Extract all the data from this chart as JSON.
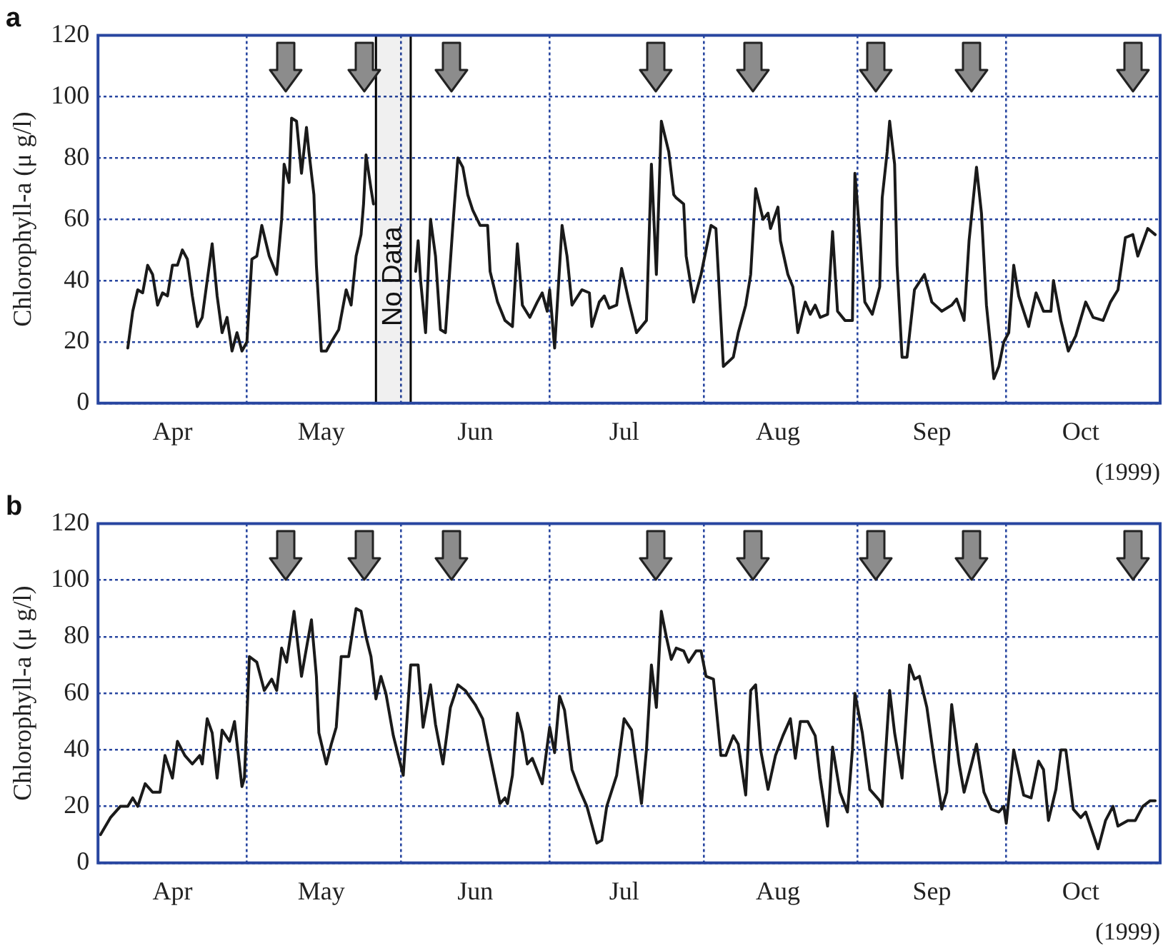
{
  "chart_data": [
    {
      "type": "line",
      "title": "a",
      "ylabel": "Chlorophyll-a (μ g/l)",
      "xlim": [
        "1999-04-01",
        "1999-11-01"
      ],
      "xticks": [
        {
          "value": "1999-04-01",
          "label": null
        },
        {
          "value": "1999-04-16",
          "label": "Apr"
        },
        {
          "value": "1999-05-01",
          "label": null
        },
        {
          "value": "1999-05-16",
          "label": "May"
        },
        {
          "value": "1999-06-01",
          "label": null
        },
        {
          "value": "1999-06-16",
          "label": "Jun"
        },
        {
          "value": "1999-07-01",
          "label": null
        },
        {
          "value": "1999-07-16",
          "label": "Jul"
        },
        {
          "value": "1999-08-01",
          "label": null
        },
        {
          "value": "1999-08-16",
          "label": "Aug"
        },
        {
          "value": "1999-09-01",
          "label": null
        },
        {
          "value": "1999-09-16",
          "label": "Sep"
        },
        {
          "value": "1999-10-01",
          "label": null
        },
        {
          "value": "1999-10-16",
          "label": "Oct"
        }
      ],
      "ylim": [
        0,
        120
      ],
      "yticks": [
        0,
        20,
        40,
        60,
        80,
        100,
        120
      ],
      "grid": true,
      "marker": "none",
      "line_style": "solid",
      "bands": [
        {
          "axis": "x",
          "from": "1999-05-27",
          "to": "1999-06-03",
          "label": "No Data"
        }
      ],
      "annotations": [
        "(1999)"
      ],
      "x": [
        "1999-04-07",
        "1999-04-08",
        "1999-04-09",
        "1999-04-10",
        "1999-04-11",
        "1999-04-12",
        "1999-04-13",
        "1999-04-14",
        "1999-04-15",
        "1999-04-16",
        "1999-04-17",
        "1999-04-18",
        "1999-04-19",
        "1999-04-20",
        "1999-04-21",
        "1999-04-22",
        "1999-04-24",
        "1999-04-25",
        "1999-04-26",
        "1999-04-27",
        "1999-04-28",
        "1999-04-29",
        "1999-04-30",
        "1999-05-01",
        "1999-05-02",
        "1999-05-03",
        "1999-05-04",
        "1999-05-05T12:00",
        "1999-05-07",
        "1999-05-08",
        "1999-05-08T12:00",
        "1999-05-09T12:00",
        "1999-05-10",
        "1999-05-11",
        "1999-05-12",
        "1999-05-13",
        "1999-05-13T12:00",
        "1999-05-14T12:00",
        "1999-05-15",
        "1999-05-16",
        "1999-05-17",
        "1999-05-18",
        "1999-05-19T12:00",
        "1999-05-21",
        "1999-05-22",
        "1999-05-23",
        "1999-05-24",
        "1999-05-24T12:00",
        "1999-05-25",
        "1999-05-26",
        "1999-05-26T12:00",
        "1999-05-30",
        "1999-06-04",
        "1999-06-04T12:00",
        "1999-06-05",
        "1999-06-06",
        "1999-06-07",
        "1999-06-08",
        "1999-06-09",
        "1999-06-10",
        "1999-06-11T12:00",
        "1999-06-12T12:00",
        "1999-06-13T12:00",
        "1999-06-14T12:00",
        "1999-06-15T12:00",
        "1999-06-17",
        "1999-06-18T12:00",
        "1999-06-19",
        "1999-06-20T12:00",
        "1999-06-22",
        "1999-06-23T12:00",
        "1999-06-24T12:00",
        "1999-06-25T12:00",
        "1999-06-27",
        "1999-06-28T12:00",
        "1999-06-29T12:00",
        "1999-06-30T12:00",
        "1999-07-01",
        "1999-07-02",
        "1999-07-03T12:00",
        "1999-07-04T12:00",
        "1999-07-05T12:00",
        "1999-07-07T12:00",
        "1999-07-09",
        "1999-07-09T12:00",
        "1999-07-11",
        "1999-07-12",
        "1999-07-13",
        "1999-07-14T12:00",
        "1999-07-15T12:00",
        "1999-07-17",
        "1999-07-18T12:00",
        "1999-07-20T12:00",
        "1999-07-21T12:00",
        "1999-07-22T12:00",
        "1999-07-23T12:00",
        "1999-07-25",
        "1999-07-26",
        "1999-07-26T12:00",
        "1999-07-28",
        "1999-07-28T12:00",
        "1999-07-30",
        "1999-07-31T12:00",
        "1999-08-02T12:00",
        "1999-08-03T12:00",
        "1999-08-05",
        "1999-08-07",
        "1999-08-08",
        "1999-08-09T12:00",
        "1999-08-10T12:00",
        "1999-08-11T12:00",
        "1999-08-13",
        "1999-08-14",
        "1999-08-14T12:00",
        "1999-08-16",
        "1999-08-16T12:00",
        "1999-08-18",
        "1999-08-19",
        "1999-08-20",
        "1999-08-21T12:00",
        "1999-08-22T12:00",
        "1999-08-23T12:00",
        "1999-08-24T12:00",
        "1999-08-26",
        "1999-08-27",
        "1999-08-28",
        "1999-08-29T12:00",
        "1999-08-31",
        "1999-08-31T12:00",
        "1999-09-01",
        "1999-09-02T12:00",
        "1999-09-04",
        "1999-09-05T12:00",
        "1999-09-06",
        "1999-09-07",
        "1999-09-07T12:00",
        "1999-09-08T12:00",
        "1999-09-09",
        "1999-09-10",
        "1999-09-11",
        "1999-09-12T12:00",
        "1999-09-14T12:00",
        "1999-09-16",
        "1999-09-18",
        "1999-09-20",
        "1999-09-21",
        "1999-09-22T12:00",
        "1999-09-23T12:00",
        "1999-09-25",
        "1999-09-26",
        "1999-09-27",
        "1999-09-28T12:00",
        "1999-09-29T12:00",
        "1999-09-30T12:00",
        "1999-10-01T12:00",
        "1999-10-02T12:00",
        "1999-10-03T12:00",
        "1999-10-05T12:00",
        "1999-10-07",
        "1999-10-08T12:00",
        "1999-10-10",
        "1999-10-10T12:00",
        "1999-10-12",
        "1999-10-13T12:00",
        "1999-10-15",
        "1999-10-17",
        "1999-10-18T12:00",
        "1999-10-20T12:00",
        "1999-10-22",
        "1999-10-23T12:00",
        "1999-10-25",
        "1999-10-26T12:00",
        "1999-10-27T12:00",
        "1999-10-29T12:00",
        "1999-10-31"
      ],
      "series": [
        {
          "color": "#1a1a1a",
          "values": [
            18,
            30,
            37,
            36,
            45,
            42,
            32,
            36,
            35,
            45,
            45,
            50,
            47,
            35,
            25,
            28,
            52,
            35,
            23,
            28,
            17,
            23,
            17,
            20,
            47,
            48,
            58,
            48,
            42,
            60,
            78,
            72,
            93,
            92,
            75,
            90,
            82,
            68,
            45,
            17,
            17,
            20,
            24,
            37,
            32,
            48,
            55,
            65,
            81,
            70,
            65,
            null,
            43,
            53,
            40,
            23,
            60,
            48,
            24,
            23,
            58,
            80,
            77,
            68,
            63,
            58,
            58,
            43,
            33,
            27,
            25,
            52,
            32,
            28,
            33,
            36,
            30,
            37,
            18,
            58,
            48,
            32,
            37,
            36,
            25,
            33,
            35,
            31,
            32,
            44,
            33,
            23,
            27,
            78,
            42,
            92,
            82,
            68,
            67,
            65,
            48,
            33,
            42,
            58,
            57,
            12,
            15,
            23,
            32,
            42,
            70,
            60,
            62,
            57,
            64,
            53,
            42,
            38,
            23,
            33,
            29,
            32,
            28,
            29,
            56,
            30,
            27,
            27,
            75,
            65,
            33,
            29,
            38,
            67,
            82,
            92,
            78,
            45,
            15,
            15,
            37,
            42,
            33,
            30,
            32,
            34,
            27,
            53,
            77,
            62,
            32,
            8,
            12,
            20,
            23,
            45,
            35,
            25,
            36,
            30,
            30,
            40,
            27,
            17,
            22,
            33,
            28,
            27,
            33,
            37,
            54,
            55,
            48,
            57,
            55
          ]
        }
      ]
    },
    {
      "type": "line",
      "title": "b",
      "ylabel": "Chlorophyll-a (μ g/l)",
      "xlim": [
        "1999-04-01",
        "1999-11-01"
      ],
      "xticks": [
        {
          "value": "1999-04-01",
          "label": null
        },
        {
          "value": "1999-04-16",
          "label": "Apr"
        },
        {
          "value": "1999-05-01",
          "label": null
        },
        {
          "value": "1999-05-16",
          "label": "May"
        },
        {
          "value": "1999-06-01",
          "label": null
        },
        {
          "value": "1999-06-16",
          "label": "Jun"
        },
        {
          "value": "1999-07-01",
          "label": null
        },
        {
          "value": "1999-07-16",
          "label": "Jul"
        },
        {
          "value": "1999-08-01",
          "label": null
        },
        {
          "value": "1999-08-16",
          "label": "Aug"
        },
        {
          "value": "1999-09-01",
          "label": null
        },
        {
          "value": "1999-09-16",
          "label": "Sep"
        },
        {
          "value": "1999-10-01",
          "label": null
        },
        {
          "value": "1999-10-16",
          "label": "Oct"
        }
      ],
      "ylim": [
        0,
        120
      ],
      "yticks": [
        0,
        20,
        40,
        60,
        80,
        100,
        120
      ],
      "grid": true,
      "marker": "none",
      "line_style": "solid",
      "annotations": [
        "(1999)"
      ],
      "x": [
        "1999-04-01T12:00",
        "1999-04-03T12:00",
        "1999-04-05T12:00",
        "1999-04-07",
        "1999-04-08",
        "1999-04-09",
        "1999-04-10T12:00",
        "1999-04-12",
        "1999-04-13T12:00",
        "1999-04-14T12:00",
        "1999-04-16",
        "1999-04-17",
        "1999-04-18T12:00",
        "1999-04-20",
        "1999-04-21T12:00",
        "1999-04-22",
        "1999-04-23",
        "1999-04-24",
        "1999-04-25",
        "1999-04-26",
        "1999-04-27T12:00",
        "1999-04-28T12:00",
        "1999-04-30",
        "1999-04-30T12:00",
        "1999-05-01T12:00",
        "1999-05-03",
        "1999-05-04T12:00",
        "1999-05-06",
        "1999-05-07",
        "1999-05-08",
        "1999-05-09",
        "1999-05-10T12:00",
        "1999-05-12",
        "1999-05-14",
        "1999-05-15",
        "1999-05-15T12:00",
        "1999-05-17",
        "1999-05-18",
        "1999-05-19",
        "1999-05-20",
        "1999-05-21T12:00",
        "1999-05-23",
        "1999-05-24",
        "1999-05-25",
        "1999-05-26",
        "1999-05-27",
        "1999-05-28",
        "1999-05-29",
        "1999-05-30T12:00",
        "1999-06-01T12:00",
        "1999-06-03",
        "1999-06-03T12:00",
        "1999-06-04T12:00",
        "1999-06-05T12:00",
        "1999-06-07",
        "1999-06-08",
        "1999-06-09T12:00",
        "1999-06-11",
        "1999-06-12T12:00",
        "1999-06-14",
        "1999-06-16",
        "1999-06-17T12:00",
        "1999-06-19",
        "1999-06-21",
        "1999-06-22",
        "1999-06-22T12:00",
        "1999-06-23T12:00",
        "1999-06-24T12:00",
        "1999-06-25T12:00",
        "1999-06-26T12:00",
        "1999-06-27T12:00",
        "1999-06-29T12:00",
        "1999-07-01",
        "1999-07-02",
        "1999-07-03",
        "1999-07-04",
        "1999-07-05T12:00",
        "1999-07-07",
        "1999-07-08T12:00",
        "1999-07-10T12:00",
        "1999-07-11T12:00",
        "1999-07-12T12:00",
        "1999-07-14T12:00",
        "1999-07-16",
        "1999-07-17T12:00",
        "1999-07-19T12:00",
        "1999-07-20T12:00",
        "1999-07-21T12:00",
        "1999-07-22T12:00",
        "1999-07-23T12:00",
        "1999-07-24T12:00",
        "1999-07-25T12:00",
        "1999-07-26T12:00",
        "1999-07-28",
        "1999-07-29",
        "1999-07-30T12:00",
        "1999-07-31T12:00",
        "1999-08-01T12:00",
        "1999-08-03",
        "1999-08-04T12:00",
        "1999-08-05T12:00",
        "1999-08-07",
        "1999-08-08",
        "1999-08-09T12:00",
        "1999-08-10T12:00",
        "1999-08-11T12:00",
        "1999-08-12T12:00",
        "1999-08-14",
        "1999-08-15T12:00",
        "1999-08-17",
        "1999-08-18T12:00",
        "1999-08-19T12:00",
        "1999-08-20T12:00",
        "1999-08-22",
        "1999-08-23T12:00",
        "1999-08-24T12:00",
        "1999-08-26",
        "1999-08-27",
        "1999-08-28T12:00",
        "1999-08-30",
        "1999-08-31",
        "1999-08-31T12:00",
        "1999-09-02",
        "1999-09-03T12:00",
        "1999-09-05T12:00",
        "1999-09-06",
        "1999-09-07T12:00",
        "1999-09-08T12:00",
        "1999-09-10",
        "1999-09-11T12:00",
        "1999-09-12T12:00",
        "1999-09-13T12:00",
        "1999-09-15",
        "1999-09-16T12:00",
        "1999-09-18",
        "1999-09-19",
        "1999-09-20",
        "1999-09-21T12:00",
        "1999-09-22T12:00",
        "1999-09-24",
        "1999-09-25",
        "1999-09-26T12:00",
        "1999-09-28",
        "1999-09-29T12:00",
        "1999-09-30T12:00",
        "1999-10-01",
        "1999-10-02T12:00",
        "1999-10-04T12:00",
        "1999-10-06",
        "1999-10-07T12:00",
        "1999-10-08T12:00",
        "1999-10-09T12:00",
        "1999-10-11",
        "1999-10-12",
        "1999-10-13",
        "1999-10-14T12:00",
        "1999-10-16",
        "1999-10-17",
        "1999-10-19T12:00",
        "1999-10-21",
        "1999-10-22T12:00",
        "1999-10-23T12:00",
        "1999-10-25T12:00",
        "1999-10-27",
        "1999-10-28T12:00",
        "1999-10-30",
        "1999-10-31"
      ],
      "series": [
        {
          "color": "#1a1a1a",
          "values": [
            10,
            16,
            20,
            20,
            23,
            20,
            28,
            25,
            25,
            38,
            30,
            43,
            38,
            35,
            38,
            35,
            51,
            46,
            30,
            47,
            43,
            50,
            27,
            30,
            73,
            71,
            61,
            65,
            61,
            76,
            71,
            89,
            66,
            86,
            66,
            46,
            35,
            42,
            48,
            73,
            73,
            90,
            89,
            80,
            73,
            58,
            66,
            60,
            45,
            31,
            70,
            70,
            70,
            48,
            63,
            49,
            35,
            55,
            63,
            61,
            56,
            51,
            38,
            21,
            23,
            21,
            31,
            53,
            46,
            35,
            37,
            28,
            48,
            39,
            59,
            54,
            33,
            26,
            20,
            7,
            8,
            20,
            31,
            51,
            47,
            21,
            40,
            70,
            55,
            89,
            80,
            72,
            76,
            75,
            71,
            75,
            75,
            66,
            65,
            38,
            38,
            45,
            42,
            24,
            61,
            63,
            40,
            26,
            38,
            45,
            51,
            37,
            50,
            50,
            45,
            30,
            13,
            41,
            25,
            18,
            40,
            60,
            46,
            26,
            22,
            20,
            61,
            46,
            30,
            70,
            65,
            66,
            55,
            36,
            19,
            25,
            56,
            35,
            25,
            35,
            42,
            25,
            19,
            18,
            20,
            14,
            40,
            24,
            23,
            36,
            33,
            15,
            26,
            40,
            40,
            19,
            16,
            18,
            5,
            15,
            20,
            13,
            15,
            15,
            20,
            22,
            22
          ]
        }
      ]
    }
  ]
}
